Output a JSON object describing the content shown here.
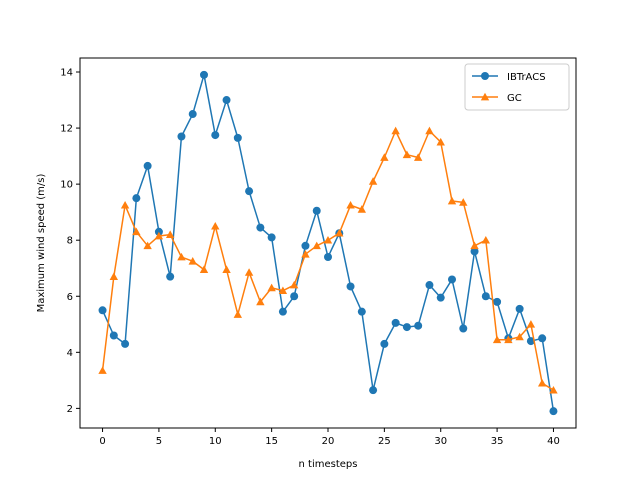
{
  "chart_data": {
    "type": "line",
    "title": "",
    "xlabel": "n timesteps",
    "ylabel": "Maximum wind speed (m/s)",
    "xlim": [
      -2,
      42
    ],
    "ylim": [
      1.3,
      14.5
    ],
    "xticks": [
      0,
      5,
      10,
      15,
      20,
      25,
      30,
      35,
      40
    ],
    "yticks": [
      2,
      4,
      6,
      8,
      10,
      12,
      14
    ],
    "grid": false,
    "legend_position": "top-right",
    "x": [
      0,
      1,
      2,
      3,
      4,
      5,
      6,
      7,
      8,
      9,
      10,
      11,
      12,
      13,
      14,
      15,
      16,
      17,
      18,
      19,
      20,
      21,
      22,
      23,
      24,
      25,
      26,
      27,
      28,
      29,
      30,
      31,
      32,
      33,
      34,
      35,
      36,
      37,
      38,
      39,
      40
    ],
    "series": [
      {
        "name": "IBTrACS",
        "color": "#1f77b4",
        "marker": "circle",
        "values": [
          5.5,
          4.6,
          4.3,
          9.5,
          10.65,
          8.3,
          6.7,
          11.7,
          12.5,
          13.9,
          11.75,
          13.0,
          11.65,
          9.75,
          8.45,
          8.1,
          5.45,
          6.0,
          7.8,
          9.05,
          7.4,
          8.25,
          6.35,
          5.45,
          2.65,
          4.3,
          5.05,
          4.9,
          4.95,
          6.4,
          5.95,
          6.6,
          4.85,
          7.6,
          6.0,
          5.8,
          4.5,
          5.55,
          4.4,
          4.5,
          1.9
        ]
      },
      {
        "name": "GC",
        "color": "#ff7f0e",
        "marker": "triangle",
        "values": [
          3.35,
          6.7,
          9.25,
          8.3,
          7.8,
          8.15,
          8.2,
          7.4,
          7.25,
          6.95,
          8.5,
          6.95,
          5.35,
          6.85,
          5.8,
          6.3,
          6.2,
          6.4,
          7.5,
          7.8,
          8.0,
          8.25,
          9.25,
          9.1,
          10.1,
          10.95,
          11.9,
          11.05,
          10.95,
          11.9,
          11.5,
          9.4,
          9.35,
          7.8,
          8.0,
          4.45,
          4.45,
          4.55,
          5.0,
          2.9,
          2.65
        ]
      }
    ]
  }
}
